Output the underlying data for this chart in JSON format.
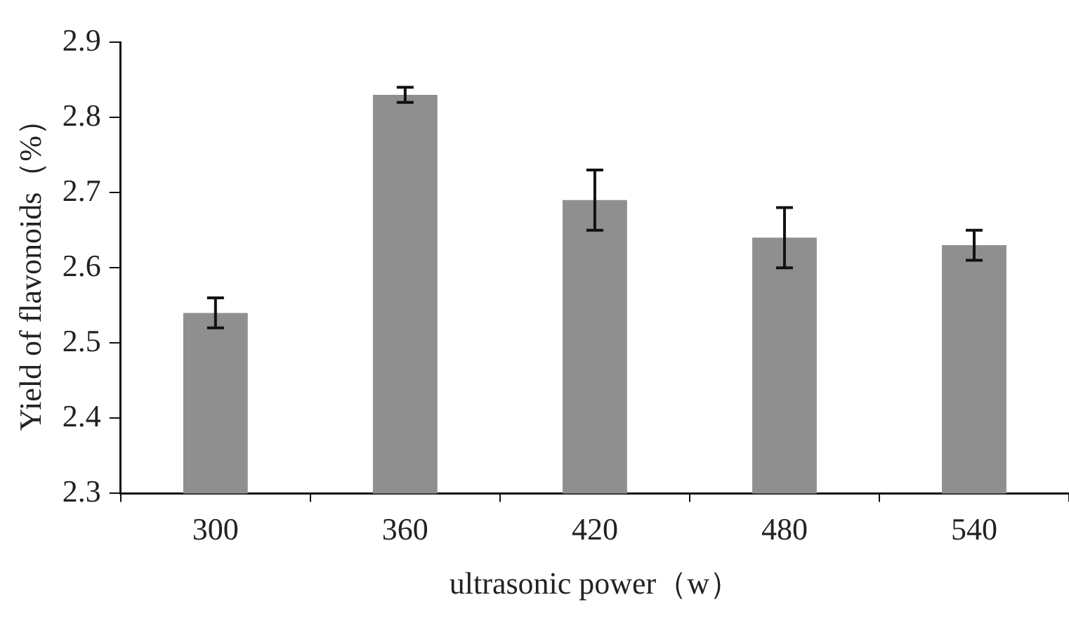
{
  "chart_data": {
    "type": "bar",
    "xlabel": "ultrasonic power（w）",
    "ylabel": "Yield of flavonoids（%）",
    "categories": [
      "300",
      "360",
      "420",
      "480",
      "540"
    ],
    "values": [
      2.54,
      2.83,
      2.69,
      2.64,
      2.63
    ],
    "errors": [
      0.02,
      0.01,
      0.04,
      0.04,
      0.02
    ],
    "color": "#8f8f8f",
    "ylim": [
      2.3,
      2.9
    ],
    "yticks": [
      2.3,
      2.4,
      2.5,
      2.6,
      2.7,
      2.8,
      2.9
    ],
    "grid": false,
    "legend": false
  }
}
